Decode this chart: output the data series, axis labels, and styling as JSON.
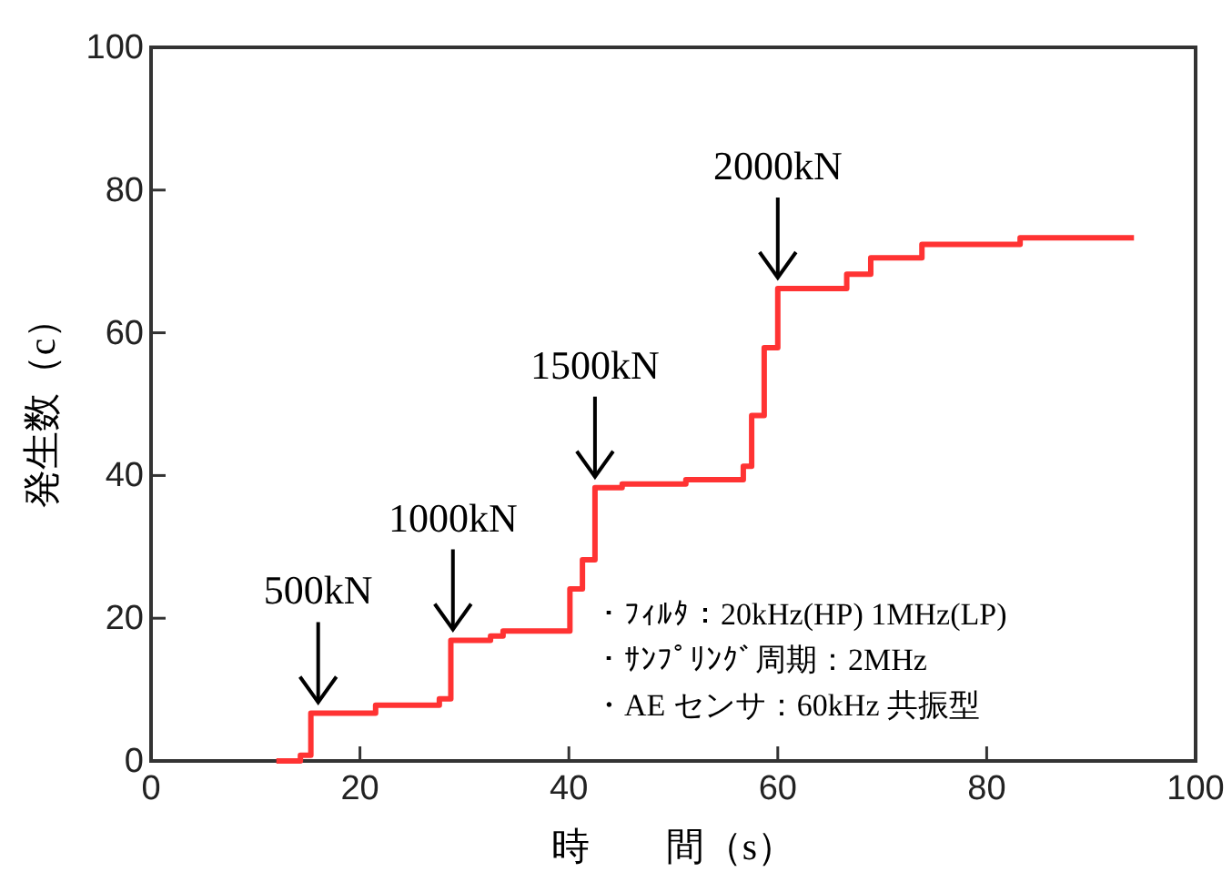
{
  "chart_data": {
    "type": "step",
    "xlabel": "時　　間（s）",
    "ylabel": "発生数（c）",
    "color": "#ff3333",
    "x": [
      12,
      14.3,
      15.3,
      21.5,
      27.6,
      28.7,
      32.5,
      33.7,
      40.1,
      41.3,
      42.5,
      45.1,
      51.2,
      56.7,
      57.5,
      58.7,
      60.0,
      66.6,
      68.9,
      73.8,
      83.2,
      94.1
    ],
    "values": [
      0,
      0.8,
      6.7,
      7.8,
      8.7,
      16.9,
      17.5,
      18.2,
      24.1,
      28.2,
      38.3,
      38.8,
      39.4,
      41.3,
      48.4,
      57.9,
      66.2,
      68.2,
      70.5,
      72.4,
      73.3,
      73.3
    ],
    "xlim": [
      0,
      100
    ],
    "ylim": [
      0,
      100
    ],
    "xticks": [
      0,
      20,
      40,
      60,
      80,
      100
    ],
    "yticks": [
      0,
      20,
      40,
      60,
      80,
      100
    ],
    "annotations": [
      {
        "text": "500kN",
        "x": 16,
        "y": 6.7
      },
      {
        "text": "1000kN",
        "x": 28.9,
        "y": 16.9
      },
      {
        "text": "1500kN",
        "x": 42.5,
        "y": 38.3
      },
      {
        "text": "2000kN",
        "x": 60,
        "y": 66.2
      },
      "・ﾌｨﾙﾀ：20kHz(HP) 1MHz(LP)",
      "・ｻﾝﾌﾟﾘﾝｸﾞ周期：2MHz",
      "・AE センサ：60kHz 共振型"
    ]
  }
}
